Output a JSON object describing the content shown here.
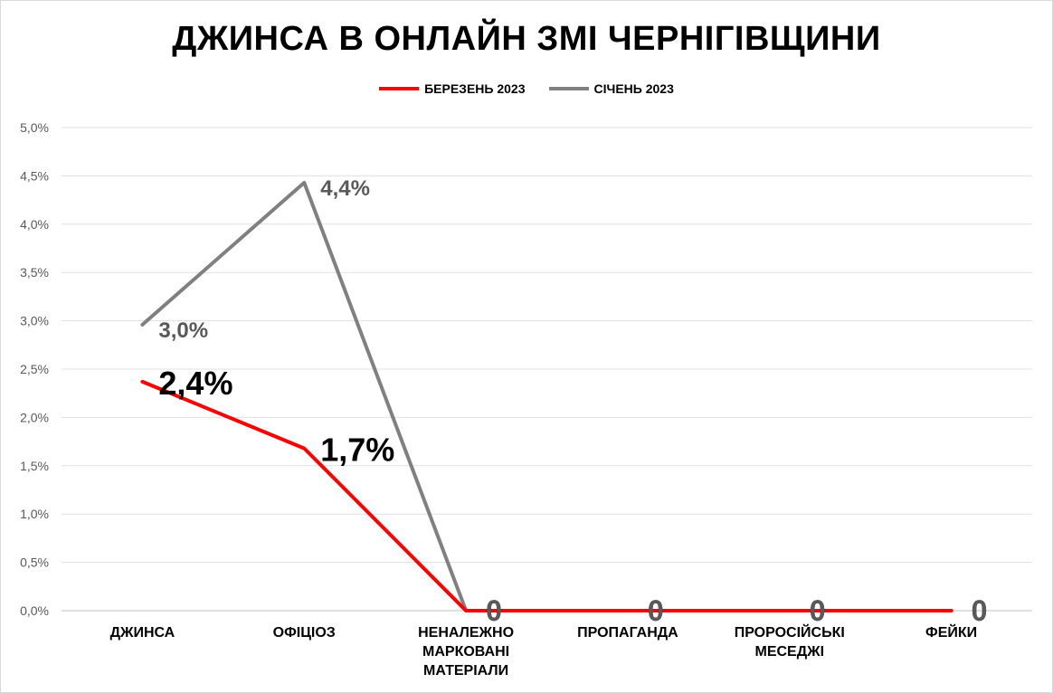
{
  "chart_data": {
    "type": "line",
    "title": "ДЖИНСА В ОНЛАЙН ЗМІ ЧЕРНІГІВЩИНИ",
    "categories": [
      [
        "ДЖИНСА"
      ],
      [
        "ОФІЦІОЗ"
      ],
      [
        "НЕНАЛЕЖНО",
        "МАРКОВАНІ",
        "МАТЕРІАЛИ"
      ],
      [
        "ПРОПАГАНДА"
      ],
      [
        "ПРОРОСІЙСЬКІ",
        "МЕСЕДЖІ"
      ],
      [
        "ФЕЙКИ"
      ]
    ],
    "y_ticks": [
      "0,0%",
      "0,5%",
      "1,0%",
      "1,5%",
      "2,0%",
      "2,5%",
      "3,0%",
      "3,5%",
      "4,0%",
      "4,5%",
      "5,0%"
    ],
    "ylim": [
      0,
      5.0
    ],
    "grid": true,
    "legend_position": "top",
    "series": [
      {
        "name": "БЕРЕЗЕНЬ 2023",
        "color": "#ff0000",
        "values": [
          2.37,
          1.68,
          0,
          0,
          0,
          0
        ],
        "labels": [
          "2,4%",
          "1,7%",
          "0",
          "0",
          "0",
          "0"
        ]
      },
      {
        "name": "СІЧЕНЬ 2023",
        "color": "#808080",
        "values": [
          2.96,
          4.43,
          0,
          0,
          0,
          0
        ],
        "labels": [
          "3,0%",
          "4,4%",
          "0",
          "0",
          "0",
          "0"
        ]
      }
    ]
  }
}
